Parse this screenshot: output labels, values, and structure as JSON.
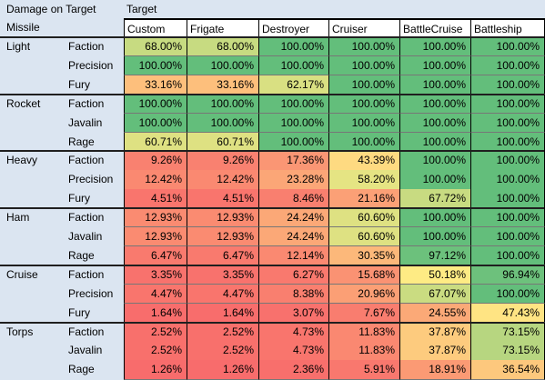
{
  "header": {
    "corner_label": "Damage on Target",
    "target_label": "Target",
    "missile_label": "Missile"
  },
  "columns": [
    "Custom",
    "Frigate",
    "Destroyer",
    "Cruiser",
    "BattleCruise",
    "Battleship"
  ],
  "groups": [
    {
      "name": "Light",
      "rows": [
        {
          "type": "Faction",
          "values": [
            "68.00%",
            "68.00%",
            "100.00%",
            "100.00%",
            "100.00%",
            "100.00%"
          ]
        },
        {
          "type": "Precision",
          "values": [
            "100.00%",
            "100.00%",
            "100.00%",
            "100.00%",
            "100.00%",
            "100.00%"
          ]
        },
        {
          "type": "Fury",
          "values": [
            "33.16%",
            "33.16%",
            "62.17%",
            "100.00%",
            "100.00%",
            "100.00%"
          ]
        }
      ]
    },
    {
      "name": "Rocket",
      "rows": [
        {
          "type": "Faction",
          "values": [
            "100.00%",
            "100.00%",
            "100.00%",
            "100.00%",
            "100.00%",
            "100.00%"
          ]
        },
        {
          "type": "Javalin",
          "values": [
            "100.00%",
            "100.00%",
            "100.00%",
            "100.00%",
            "100.00%",
            "100.00%"
          ]
        },
        {
          "type": "Rage",
          "values": [
            "60.71%",
            "60.71%",
            "100.00%",
            "100.00%",
            "100.00%",
            "100.00%"
          ]
        }
      ]
    },
    {
      "name": "Heavy",
      "rows": [
        {
          "type": "Faction",
          "values": [
            "9.26%",
            "9.26%",
            "17.36%",
            "43.39%",
            "100.00%",
            "100.00%"
          ]
        },
        {
          "type": "Precision",
          "values": [
            "12.42%",
            "12.42%",
            "23.28%",
            "58.20%",
            "100.00%",
            "100.00%"
          ]
        },
        {
          "type": "Fury",
          "values": [
            "4.51%",
            "4.51%",
            "8.46%",
            "21.16%",
            "67.72%",
            "100.00%"
          ]
        }
      ]
    },
    {
      "name": "Ham",
      "rows": [
        {
          "type": "Faction",
          "values": [
            "12.93%",
            "12.93%",
            "24.24%",
            "60.60%",
            "100.00%",
            "100.00%"
          ]
        },
        {
          "type": "Javalin",
          "values": [
            "12.93%",
            "12.93%",
            "24.24%",
            "60.60%",
            "100.00%",
            "100.00%"
          ]
        },
        {
          "type": "Rage",
          "values": [
            "6.47%",
            "6.47%",
            "12.14%",
            "30.35%",
            "97.12%",
            "100.00%"
          ]
        }
      ]
    },
    {
      "name": "Cruise",
      "rows": [
        {
          "type": "Faction",
          "values": [
            "3.35%",
            "3.35%",
            "6.27%",
            "15.68%",
            "50.18%",
            "96.94%"
          ]
        },
        {
          "type": "Precision",
          "values": [
            "4.47%",
            "4.47%",
            "8.38%",
            "20.96%",
            "67.07%",
            "100.00%"
          ]
        },
        {
          "type": "Fury",
          "values": [
            "1.64%",
            "1.64%",
            "3.07%",
            "7.67%",
            "24.55%",
            "47.43%"
          ]
        }
      ]
    },
    {
      "name": "Torps",
      "rows": [
        {
          "type": "Faction",
          "values": [
            "2.52%",
            "2.52%",
            "4.73%",
            "11.83%",
            "37.87%",
            "73.15%"
          ]
        },
        {
          "type": "Javalin",
          "values": [
            "2.52%",
            "2.52%",
            "4.73%",
            "11.83%",
            "37.87%",
            "73.15%"
          ]
        },
        {
          "type": "Rage",
          "values": [
            "1.26%",
            "1.26%",
            "2.36%",
            "5.91%",
            "18.91%",
            "36.54%"
          ]
        }
      ]
    }
  ],
  "color_scale": {
    "low": "#f8696b",
    "mid": "#ffeb84",
    "high": "#63be7b"
  }
}
